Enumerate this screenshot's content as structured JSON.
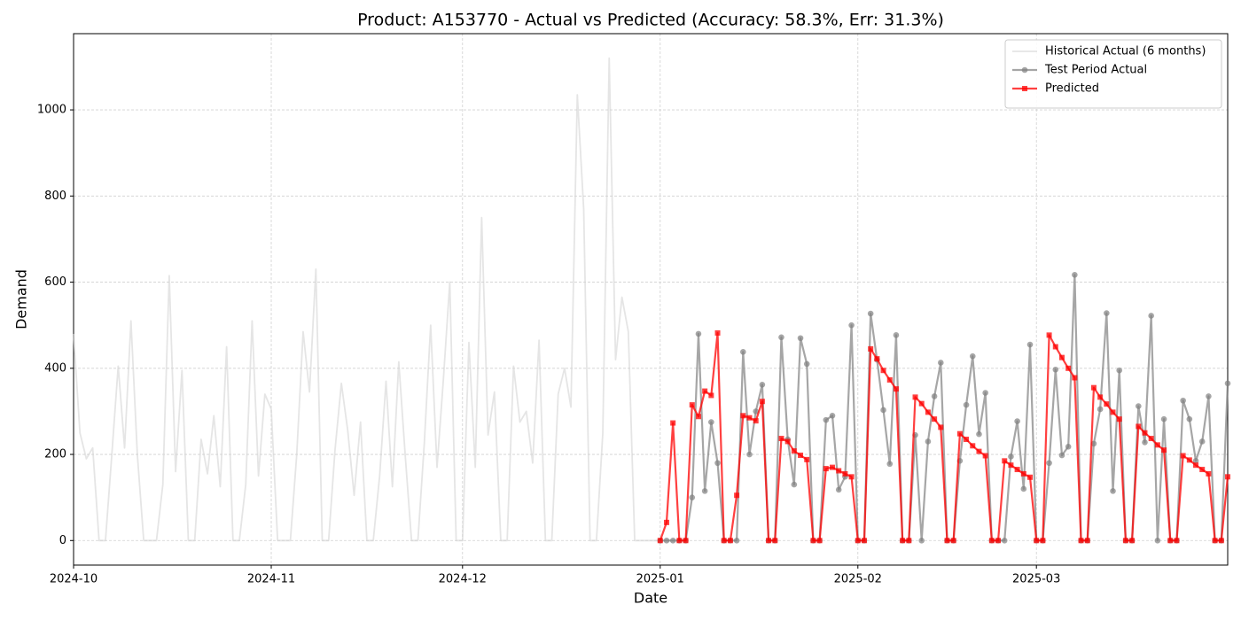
{
  "chart_data": {
    "type": "line",
    "title": "Product: A153770 - Actual vs Predicted (Accuracy: 58.3%, Err: 31.3%)",
    "x_label": "Date",
    "y_label": "Demand",
    "xlim": [
      0,
      181
    ],
    "ylim": [
      -57,
      1177
    ],
    "xticks": [
      {
        "value": 0,
        "label": "2024-10"
      },
      {
        "value": 31,
        "label": "2024-11"
      },
      {
        "value": 61,
        "label": "2024-12"
      },
      {
        "value": 92,
        "label": "2025-01"
      },
      {
        "value": 123,
        "label": "2025-02"
      },
      {
        "value": 151,
        "label": "2025-03"
      }
    ],
    "yticks": [
      0,
      200,
      400,
      600,
      800,
      1000
    ],
    "grid": true,
    "legend": "upper right",
    "series": [
      {
        "name": "Historical Actual (6 months)",
        "color": "#d3d3d3",
        "marker": "none",
        "x": [
          0,
          1,
          2,
          3,
          4,
          5,
          6,
          7,
          8,
          9,
          10,
          11,
          12,
          13,
          14,
          15,
          16,
          17,
          18,
          19,
          20,
          21,
          22,
          23,
          24,
          25,
          26,
          27,
          28,
          29,
          30,
          31,
          32,
          33,
          34,
          35,
          36,
          37,
          38,
          39,
          40,
          41,
          42,
          43,
          44,
          45,
          46,
          47,
          48,
          49,
          50,
          51,
          52,
          53,
          54,
          55,
          56,
          57,
          58,
          59,
          60,
          61,
          62,
          63,
          64,
          65,
          66,
          67,
          68,
          69,
          70,
          71,
          72,
          73,
          74,
          75,
          76,
          77,
          78,
          79,
          80,
          81,
          82,
          83,
          84,
          85,
          86,
          87,
          88,
          89,
          90,
          91,
          92
        ],
        "values": [
          480,
          250,
          190,
          215,
          0,
          0,
          200,
          405,
          215,
          510,
          200,
          0,
          0,
          0,
          130,
          615,
          160,
          395,
          0,
          0,
          235,
          155,
          290,
          125,
          450,
          0,
          0,
          130,
          510,
          150,
          340,
          305,
          0,
          0,
          0,
          200,
          485,
          345,
          630,
          0,
          0,
          210,
          365,
          255,
          105,
          275,
          0,
          0,
          150,
          370,
          125,
          415,
          200,
          0,
          0,
          225,
          500,
          170,
          375,
          600,
          0,
          0,
          460,
          170,
          750,
          245,
          345,
          0,
          0,
          405,
          275,
          300,
          180,
          465,
          0,
          0,
          340,
          400,
          310,
          1035,
          770,
          0,
          0,
          250,
          1120,
          420,
          565,
          485,
          0,
          0,
          0,
          0,
          0
        ]
      },
      {
        "name": "Test Period Actual",
        "color": "#808080",
        "marker": "circle",
        "x": [
          92,
          93,
          94,
          95,
          96,
          97,
          98,
          99,
          100,
          101,
          102,
          103,
          104,
          105,
          106,
          107,
          108,
          109,
          110,
          111,
          112,
          113,
          114,
          115,
          116,
          117,
          118,
          119,
          120,
          121,
          122,
          123,
          124,
          125,
          126,
          127,
          128,
          129,
          130,
          131,
          132,
          133,
          134,
          135,
          136,
          137,
          138,
          139,
          140,
          141,
          142,
          143,
          144,
          145,
          146,
          147,
          148,
          149,
          150,
          151,
          152,
          153,
          154,
          155,
          156,
          157,
          158,
          159,
          160,
          161,
          162,
          163,
          164,
          165,
          166,
          167,
          168,
          169,
          170,
          171,
          172,
          173,
          174,
          175,
          176,
          177,
          178,
          179,
          180,
          181
        ],
        "values": [
          0,
          0,
          0,
          0,
          0,
          100,
          480,
          115,
          275,
          180,
          0,
          0,
          0,
          438,
          200,
          300,
          362,
          0,
          0,
          472,
          235,
          130,
          470,
          410,
          0,
          0,
          280,
          290,
          118,
          148,
          500,
          0,
          0,
          527,
          420,
          303,
          178,
          477,
          0,
          0,
          245,
          0,
          230,
          335,
          413,
          0,
          0,
          185,
          315,
          428,
          247,
          343,
          0,
          0,
          0,
          195,
          277,
          120,
          455,
          0,
          0,
          180,
          397,
          198,
          218,
          617,
          0,
          0,
          225,
          305,
          528,
          115,
          395,
          0,
          0,
          312,
          228,
          522,
          0,
          282,
          0,
          0,
          325,
          282,
          185,
          230,
          335,
          0,
          0,
          365
        ]
      },
      {
        "name": "Predicted",
        "color": "#ff0000",
        "marker": "square",
        "x": [
          92,
          93,
          94,
          95,
          96,
          97,
          98,
          99,
          100,
          101,
          102,
          103,
          104,
          105,
          106,
          107,
          108,
          109,
          110,
          111,
          112,
          113,
          114,
          115,
          116,
          117,
          118,
          119,
          120,
          121,
          122,
          123,
          124,
          125,
          126,
          127,
          128,
          129,
          130,
          131,
          132,
          133,
          134,
          135,
          136,
          137,
          138,
          139,
          140,
          141,
          142,
          143,
          144,
          145,
          146,
          147,
          148,
          149,
          150,
          151,
          152,
          153,
          154,
          155,
          156,
          157,
          158,
          159,
          160,
          161,
          162,
          163,
          164,
          165,
          166,
          167,
          168,
          169,
          170,
          171,
          172,
          173,
          174,
          175,
          176,
          177,
          178,
          179,
          180,
          181
        ],
        "values": [
          0,
          42,
          273,
          0,
          0,
          315,
          288,
          347,
          337,
          482,
          0,
          0,
          105,
          290,
          285,
          278,
          323,
          0,
          0,
          237,
          230,
          208,
          198,
          188,
          0,
          0,
          167,
          170,
          162,
          155,
          148,
          0,
          0,
          445,
          422,
          395,
          373,
          352,
          0,
          0,
          333,
          318,
          298,
          282,
          263,
          0,
          0,
          248,
          235,
          220,
          207,
          197,
          0,
          0,
          185,
          175,
          165,
          155,
          147,
          0,
          0,
          477,
          450,
          425,
          400,
          378,
          0,
          0,
          355,
          333,
          317,
          298,
          282,
          0,
          0,
          265,
          250,
          237,
          222,
          210,
          0,
          0,
          197,
          187,
          175,
          165,
          155,
          0,
          0,
          148
        ]
      }
    ]
  }
}
